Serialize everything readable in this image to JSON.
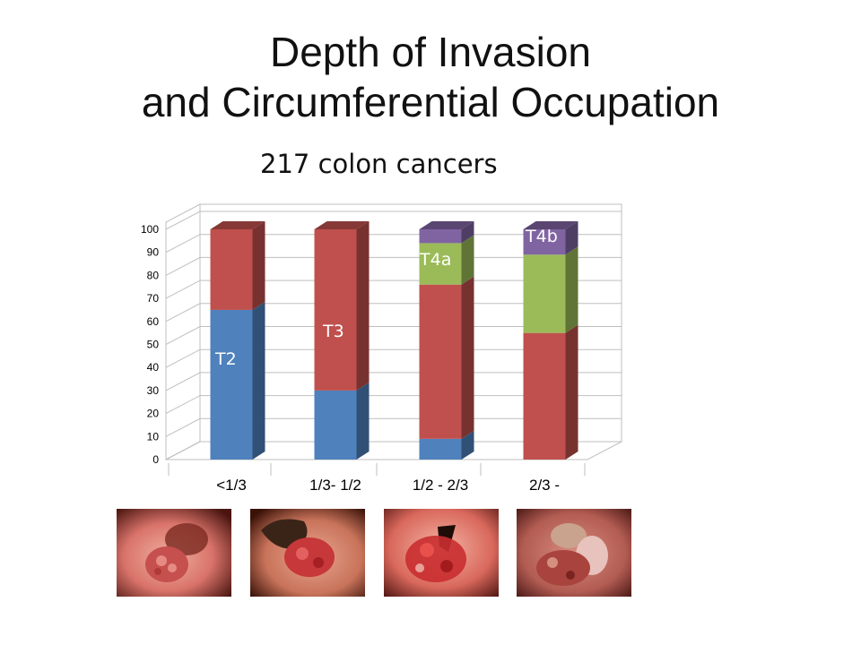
{
  "slide": {
    "title_line1": "Depth of Invasion",
    "title_line2": "and Circumferential Occupation",
    "subtitle": "217 colon cancers"
  },
  "chart_data": {
    "type": "bar",
    "stacked": true,
    "three_d": true,
    "categories": [
      "<1/3",
      "1/3- 1/2",
      "1/2 - 2/3",
      "2/3 -"
    ],
    "series": [
      {
        "name": "T2",
        "color": "#4f81bd",
        "values": [
          65,
          30,
          9,
          0
        ]
      },
      {
        "name": "T3",
        "color": "#c0504d",
        "values": [
          35,
          70,
          67,
          55
        ]
      },
      {
        "name": "T4a",
        "color": "#9bbb59",
        "values": [
          0,
          0,
          18,
          34
        ]
      },
      {
        "name": "T4b",
        "color": "#8064a2",
        "values": [
          0,
          0,
          6,
          11
        ]
      }
    ],
    "series_labels": [
      {
        "text": "T2",
        "category": 0,
        "series": 0
      },
      {
        "text": "T3",
        "category": 1,
        "series": 1
      },
      {
        "text": "T4a",
        "category": 2,
        "series": 2
      },
      {
        "text": "T4b",
        "category": 3,
        "series": 3
      }
    ],
    "yticks": [
      0,
      10,
      20,
      30,
      40,
      50,
      60,
      70,
      80,
      90,
      100
    ],
    "ylim": [
      0,
      100
    ],
    "grid": true,
    "legend": "none"
  },
  "photos": [
    {
      "icon": "endoscopy-photo-1"
    },
    {
      "icon": "endoscopy-photo-2"
    },
    {
      "icon": "endoscopy-photo-3"
    },
    {
      "icon": "endoscopy-photo-4"
    }
  ]
}
